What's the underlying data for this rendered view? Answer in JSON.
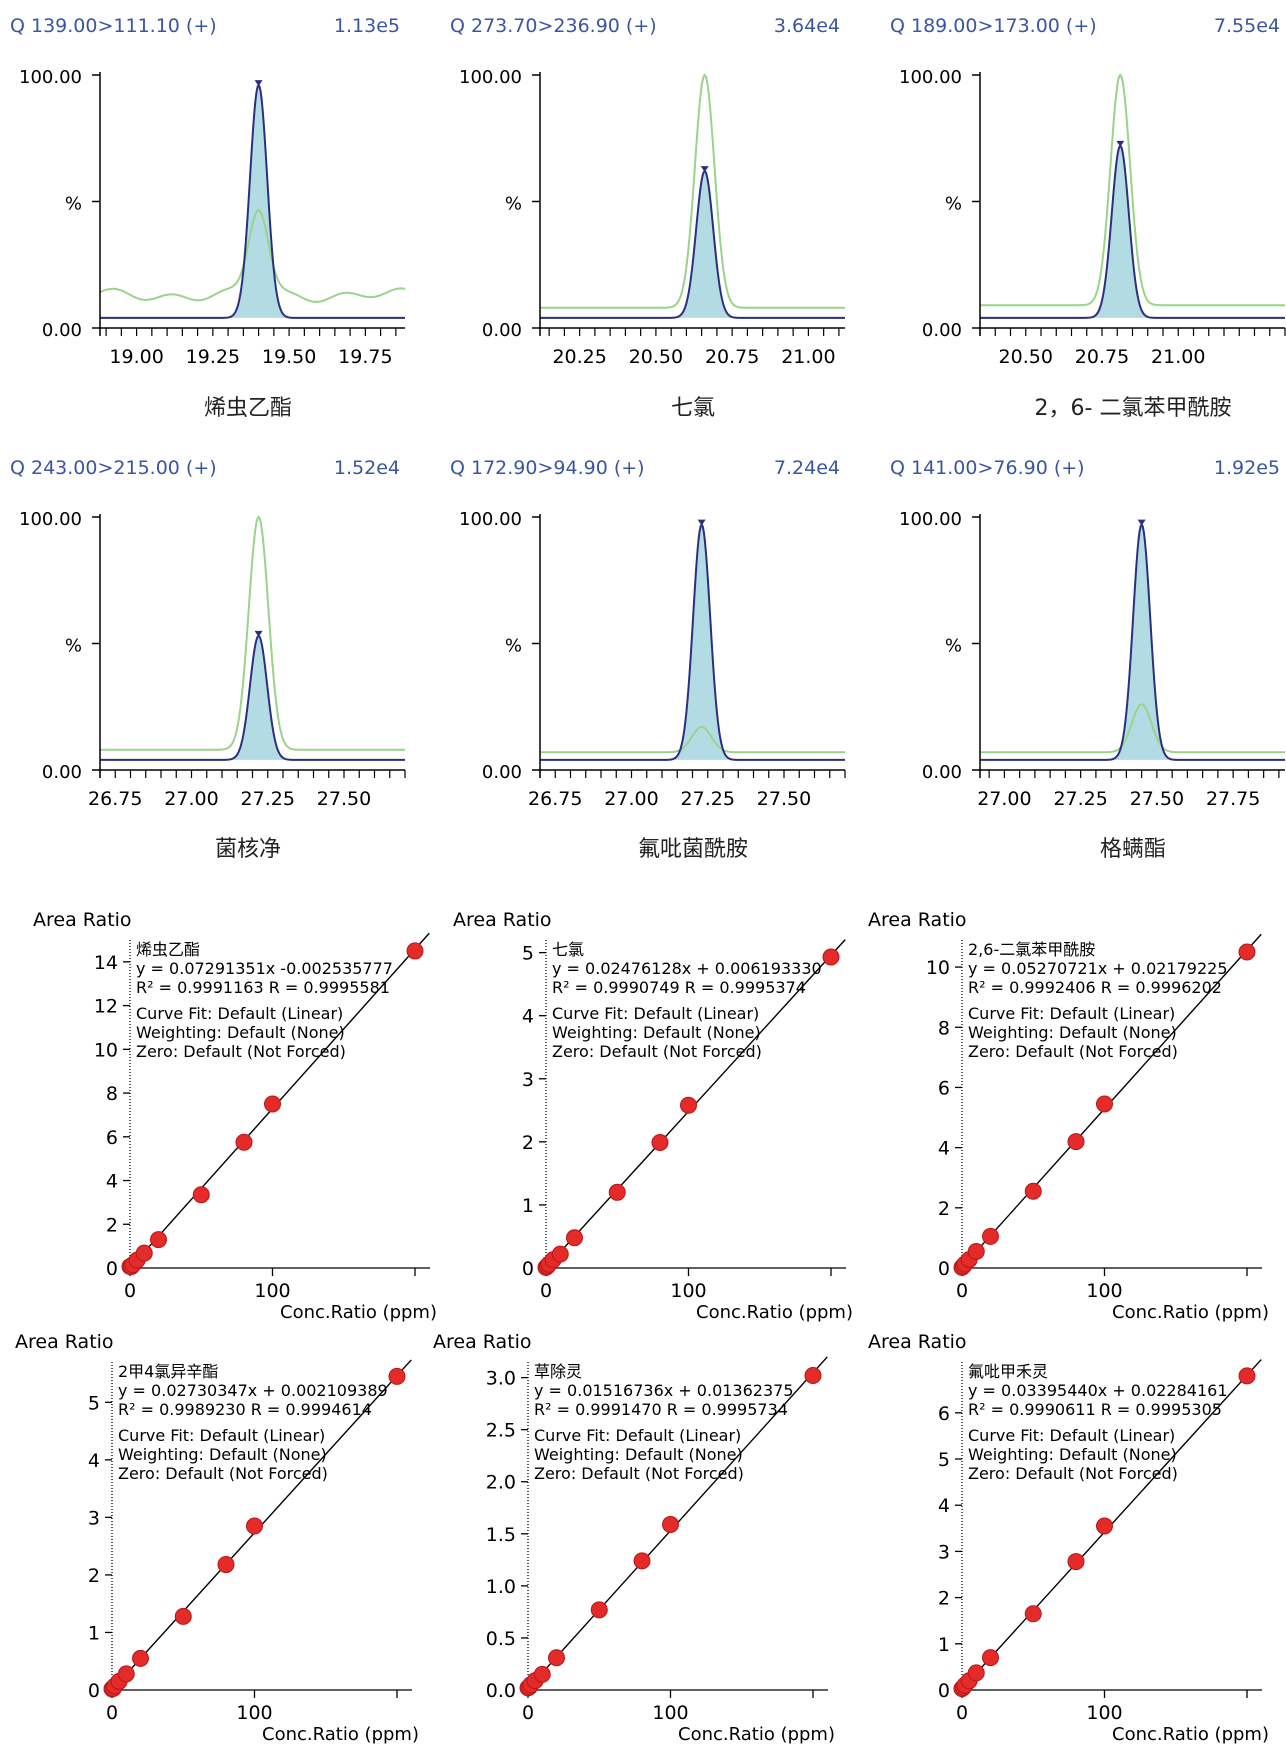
{
  "chromatograms": [
    {
      "id": "c1",
      "channel": "Q 139.00>111.10 (+)",
      "intensity": "1.13e5",
      "compound": "烯虫乙酯",
      "ylabels": {
        "top": "100.00",
        "mid": "%",
        "bottom": "0.00"
      },
      "xrange": [
        18.88,
        19.88
      ],
      "xticks": [
        "19.00",
        "19.25",
        "19.50",
        "19.75"
      ],
      "peak_rt": 19.4,
      "blue_peak_pct": 96,
      "green_peak_pct": 47,
      "baseline_pct": 4,
      "green_base_pct": 13,
      "green_bumpy": true
    },
    {
      "id": "c2",
      "channel": "Q 273.70>236.90 (+)",
      "intensity": "3.64e4",
      "compound": "七氯",
      "ylabels": {
        "top": "100.00",
        "mid": "%",
        "bottom": "0.00"
      },
      "xrange": [
        20.12,
        21.12
      ],
      "xticks": [
        "20.25",
        "20.50",
        "20.75",
        "21.00"
      ],
      "peak_rt": 20.66,
      "blue_peak_pct": 62,
      "green_peak_pct": 100,
      "baseline_pct": 4,
      "green_base_pct": 8,
      "green_bumpy": false
    },
    {
      "id": "c3",
      "channel": "Q 189.00>173.00 (+)",
      "intensity": "7.55e4",
      "compound": "2，6- 二氯苯甲酰胺",
      "ylabels": {
        "top": "100.00",
        "mid": "%",
        "bottom": "0.00"
      },
      "xrange": [
        20.35,
        21.35
      ],
      "xticks": [
        "20.50",
        "20.75",
        "21.00"
      ],
      "peak_rt": 20.81,
      "blue_peak_pct": 72,
      "green_peak_pct": 100,
      "baseline_pct": 4,
      "green_base_pct": 9,
      "green_bumpy": false
    },
    {
      "id": "c4",
      "channel": "Q 243.00>215.00 (+)",
      "intensity": "1.52e4",
      "compound": "菌核净",
      "ylabels": {
        "top": "100.00",
        "mid": "%",
        "bottom": "0.00"
      },
      "xrange": [
        26.7,
        27.7
      ],
      "xticks": [
        "26.75",
        "27.00",
        "27.25",
        "27.50"
      ],
      "peak_rt": 27.22,
      "blue_peak_pct": 53,
      "green_peak_pct": 100,
      "baseline_pct": 4,
      "green_base_pct": 8,
      "green_bumpy": false
    },
    {
      "id": "c5",
      "channel": "Q 172.90>94.90 (+)",
      "intensity": "7.24e4",
      "compound": "氟吡菌酰胺",
      "ylabels": {
        "top": "100.00",
        "mid": "%",
        "bottom": "0.00"
      },
      "xrange": [
        26.7,
        27.7
      ],
      "xticks": [
        "26.75",
        "27.00",
        "27.25",
        "27.50"
      ],
      "peak_rt": 27.23,
      "blue_peak_pct": 97,
      "green_peak_pct": 17,
      "baseline_pct": 4,
      "green_base_pct": 7,
      "green_bumpy": false
    },
    {
      "id": "c6",
      "channel": "Q 141.00>76.90 (+)",
      "intensity": "1.92e5",
      "compound": "格螨酯",
      "ylabels": {
        "top": "100.00",
        "mid": "%",
        "bottom": "0.00"
      },
      "xrange": [
        26.92,
        27.92
      ],
      "xticks": [
        "27.00",
        "27.25",
        "27.50",
        "27.75"
      ],
      "peak_rt": 27.45,
      "blue_peak_pct": 97,
      "green_peak_pct": 26,
      "baseline_pct": 4,
      "green_base_pct": 7,
      "green_bumpy": false
    }
  ],
  "chart_data": [
    {
      "type": "scatter",
      "compound": "烯虫乙酯",
      "ylabel": "Area Ratio",
      "xlabel": "Conc.Ratio (ppm)",
      "equation": "y = 0.07291351x -0.002535777",
      "r_values": "R² = 0.9991163    R = 0.9995581",
      "slope": 0.07291351,
      "intercept": -0.002535777,
      "x": [
        0,
        1,
        2,
        5,
        10,
        20,
        50,
        80,
        100,
        200
      ],
      "y": [
        0.07,
        0.07,
        0.15,
        0.36,
        0.68,
        1.3,
        3.35,
        5.75,
        7.5,
        14.5
      ],
      "xlim": [
        -2,
        200
      ],
      "ylim": [
        0,
        15
      ],
      "yticks": [
        0,
        2,
        4,
        6,
        8,
        10,
        12,
        14
      ],
      "xticks": [
        0,
        100
      ]
    },
    {
      "type": "scatter",
      "compound": "七氯",
      "ylabel": "Area Ratio",
      "xlabel": "Conc.Ratio (ppm)",
      "equation": "y = 0.02476128x + 0.006193330",
      "r_values": "R² = 0.9990749    R = 0.9995374",
      "slope": 0.02476128,
      "intercept": 0.00619333,
      "x": [
        0,
        1,
        2,
        5,
        10,
        20,
        50,
        80,
        100,
        200
      ],
      "y": [
        0.01,
        0.03,
        0.06,
        0.13,
        0.22,
        0.48,
        1.2,
        1.99,
        2.58,
        4.93
      ],
      "xlim": [
        -2,
        200
      ],
      "ylim": [
        0,
        5.2
      ],
      "yticks": [
        0,
        1,
        2,
        3,
        4,
        5
      ],
      "xticks": [
        0,
        100
      ]
    },
    {
      "type": "scatter",
      "compound": "2,6-二氯苯甲酰胺",
      "ylabel": "Area Ratio",
      "xlabel": "Conc.Ratio (ppm)",
      "equation": "y = 0.05270721x + 0.02179225",
      "r_values": "R² = 0.9992406    R = 0.9996202",
      "slope": 0.05270721,
      "intercept": 0.02179225,
      "x": [
        0,
        1,
        2,
        5,
        10,
        20,
        50,
        80,
        100,
        200
      ],
      "y": [
        0.02,
        0.07,
        0.13,
        0.28,
        0.55,
        1.05,
        2.55,
        4.2,
        5.45,
        10.5
      ],
      "xlim": [
        -2,
        200
      ],
      "ylim": [
        0,
        10.9
      ],
      "yticks": [
        0,
        2,
        4,
        6,
        8,
        10
      ],
      "xticks": [
        0,
        100
      ]
    },
    {
      "type": "scatter",
      "compound": "2甲4氯异辛酯",
      "ylabel": "Area Ratio",
      "xlabel": "Conc.Ratio (ppm)",
      "equation": "y = 0.02730347x + 0.002109389",
      "r_values": "R² = 0.9989230    R = 0.9994614",
      "slope": 0.02730347,
      "intercept": 0.002109389,
      "x": [
        0,
        1,
        2,
        5,
        10,
        20,
        50,
        80,
        100,
        200
      ],
      "y": [
        0.02,
        0.03,
        0.07,
        0.15,
        0.28,
        0.55,
        1.28,
        2.18,
        2.85,
        5.45
      ],
      "xlim": [
        -2,
        200
      ],
      "ylim": [
        0,
        5.7
      ],
      "yticks": [
        0,
        1,
        2,
        3,
        4,
        5
      ],
      "xticks": [
        0,
        100
      ]
    },
    {
      "type": "scatter",
      "compound": "草除灵",
      "ylabel": "Area Ratio",
      "xlabel": "Conc.Ratio (ppm)",
      "equation": "y = 0.01516736x + 0.01362375",
      "r_values": "R² = 0.9991470    R = 0.9995734",
      "slope": 0.01516736,
      "intercept": 0.01362375,
      "x": [
        0,
        1,
        2,
        5,
        10,
        20,
        50,
        80,
        100,
        200
      ],
      "y": [
        0.02,
        0.03,
        0.05,
        0.09,
        0.15,
        0.31,
        0.77,
        1.24,
        1.59,
        3.02
      ],
      "xlim": [
        -2,
        200
      ],
      "ylim": [
        0,
        3.15
      ],
      "yticks": [
        "0.0",
        "0.5",
        "1.0",
        "1.5",
        "2.0",
        "2.5",
        "3.0"
      ],
      "xticks": [
        0,
        100
      ]
    },
    {
      "type": "scatter",
      "compound": "氟吡甲禾灵",
      "ylabel": "Area Ratio",
      "xlabel": "Conc.Ratio (ppm)",
      "equation": "y = 0.03395440x + 0.02284161",
      "r_values": "R² = 0.9990611    R = 0.9995305",
      "slope": 0.0339544,
      "intercept": 0.02284161,
      "x": [
        0,
        1,
        2,
        5,
        10,
        20,
        50,
        80,
        100,
        200
      ],
      "y": [
        0.03,
        0.06,
        0.1,
        0.2,
        0.37,
        0.7,
        1.65,
        2.78,
        3.55,
        6.8
      ],
      "xlim": [
        -2,
        200
      ],
      "ylim": [
        0,
        7.1
      ],
      "yticks": [
        0,
        1,
        2,
        3,
        4,
        5,
        6
      ],
      "xticks": [
        0,
        100
      ]
    }
  ],
  "fit_info": {
    "fit": "Curve Fit: Default (Linear)",
    "weighting": "Weighting: Default (None)",
    "zero": "Zero: Default (Not Forced)"
  },
  "colors": {
    "channel_text": "#3a56a0",
    "blue_line": "#2b2f7f",
    "fill": "#b3dbe3",
    "green_line": "#9ad38a",
    "point": "#e52a2a",
    "axis": "#000000"
  }
}
